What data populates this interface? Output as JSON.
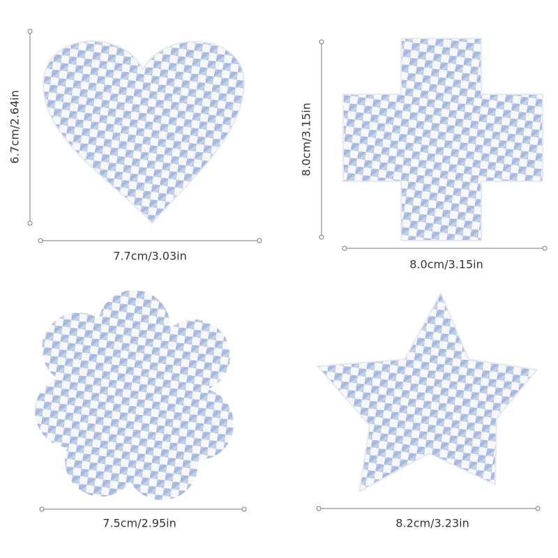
{
  "shapes": [
    {
      "shape": "heart",
      "width_label": "7.7cm/3.03in",
      "height_label": "6.7cm/2.64in"
    },
    {
      "shape": "cross",
      "width_label": "8.0cm/3.15in",
      "height_label": "8.0cm/3.15in"
    },
    {
      "shape": "flower",
      "width_label": "7.5cm/2.95in"
    },
    {
      "shape": "star",
      "width_label": "8.2cm/3.23in"
    }
  ]
}
